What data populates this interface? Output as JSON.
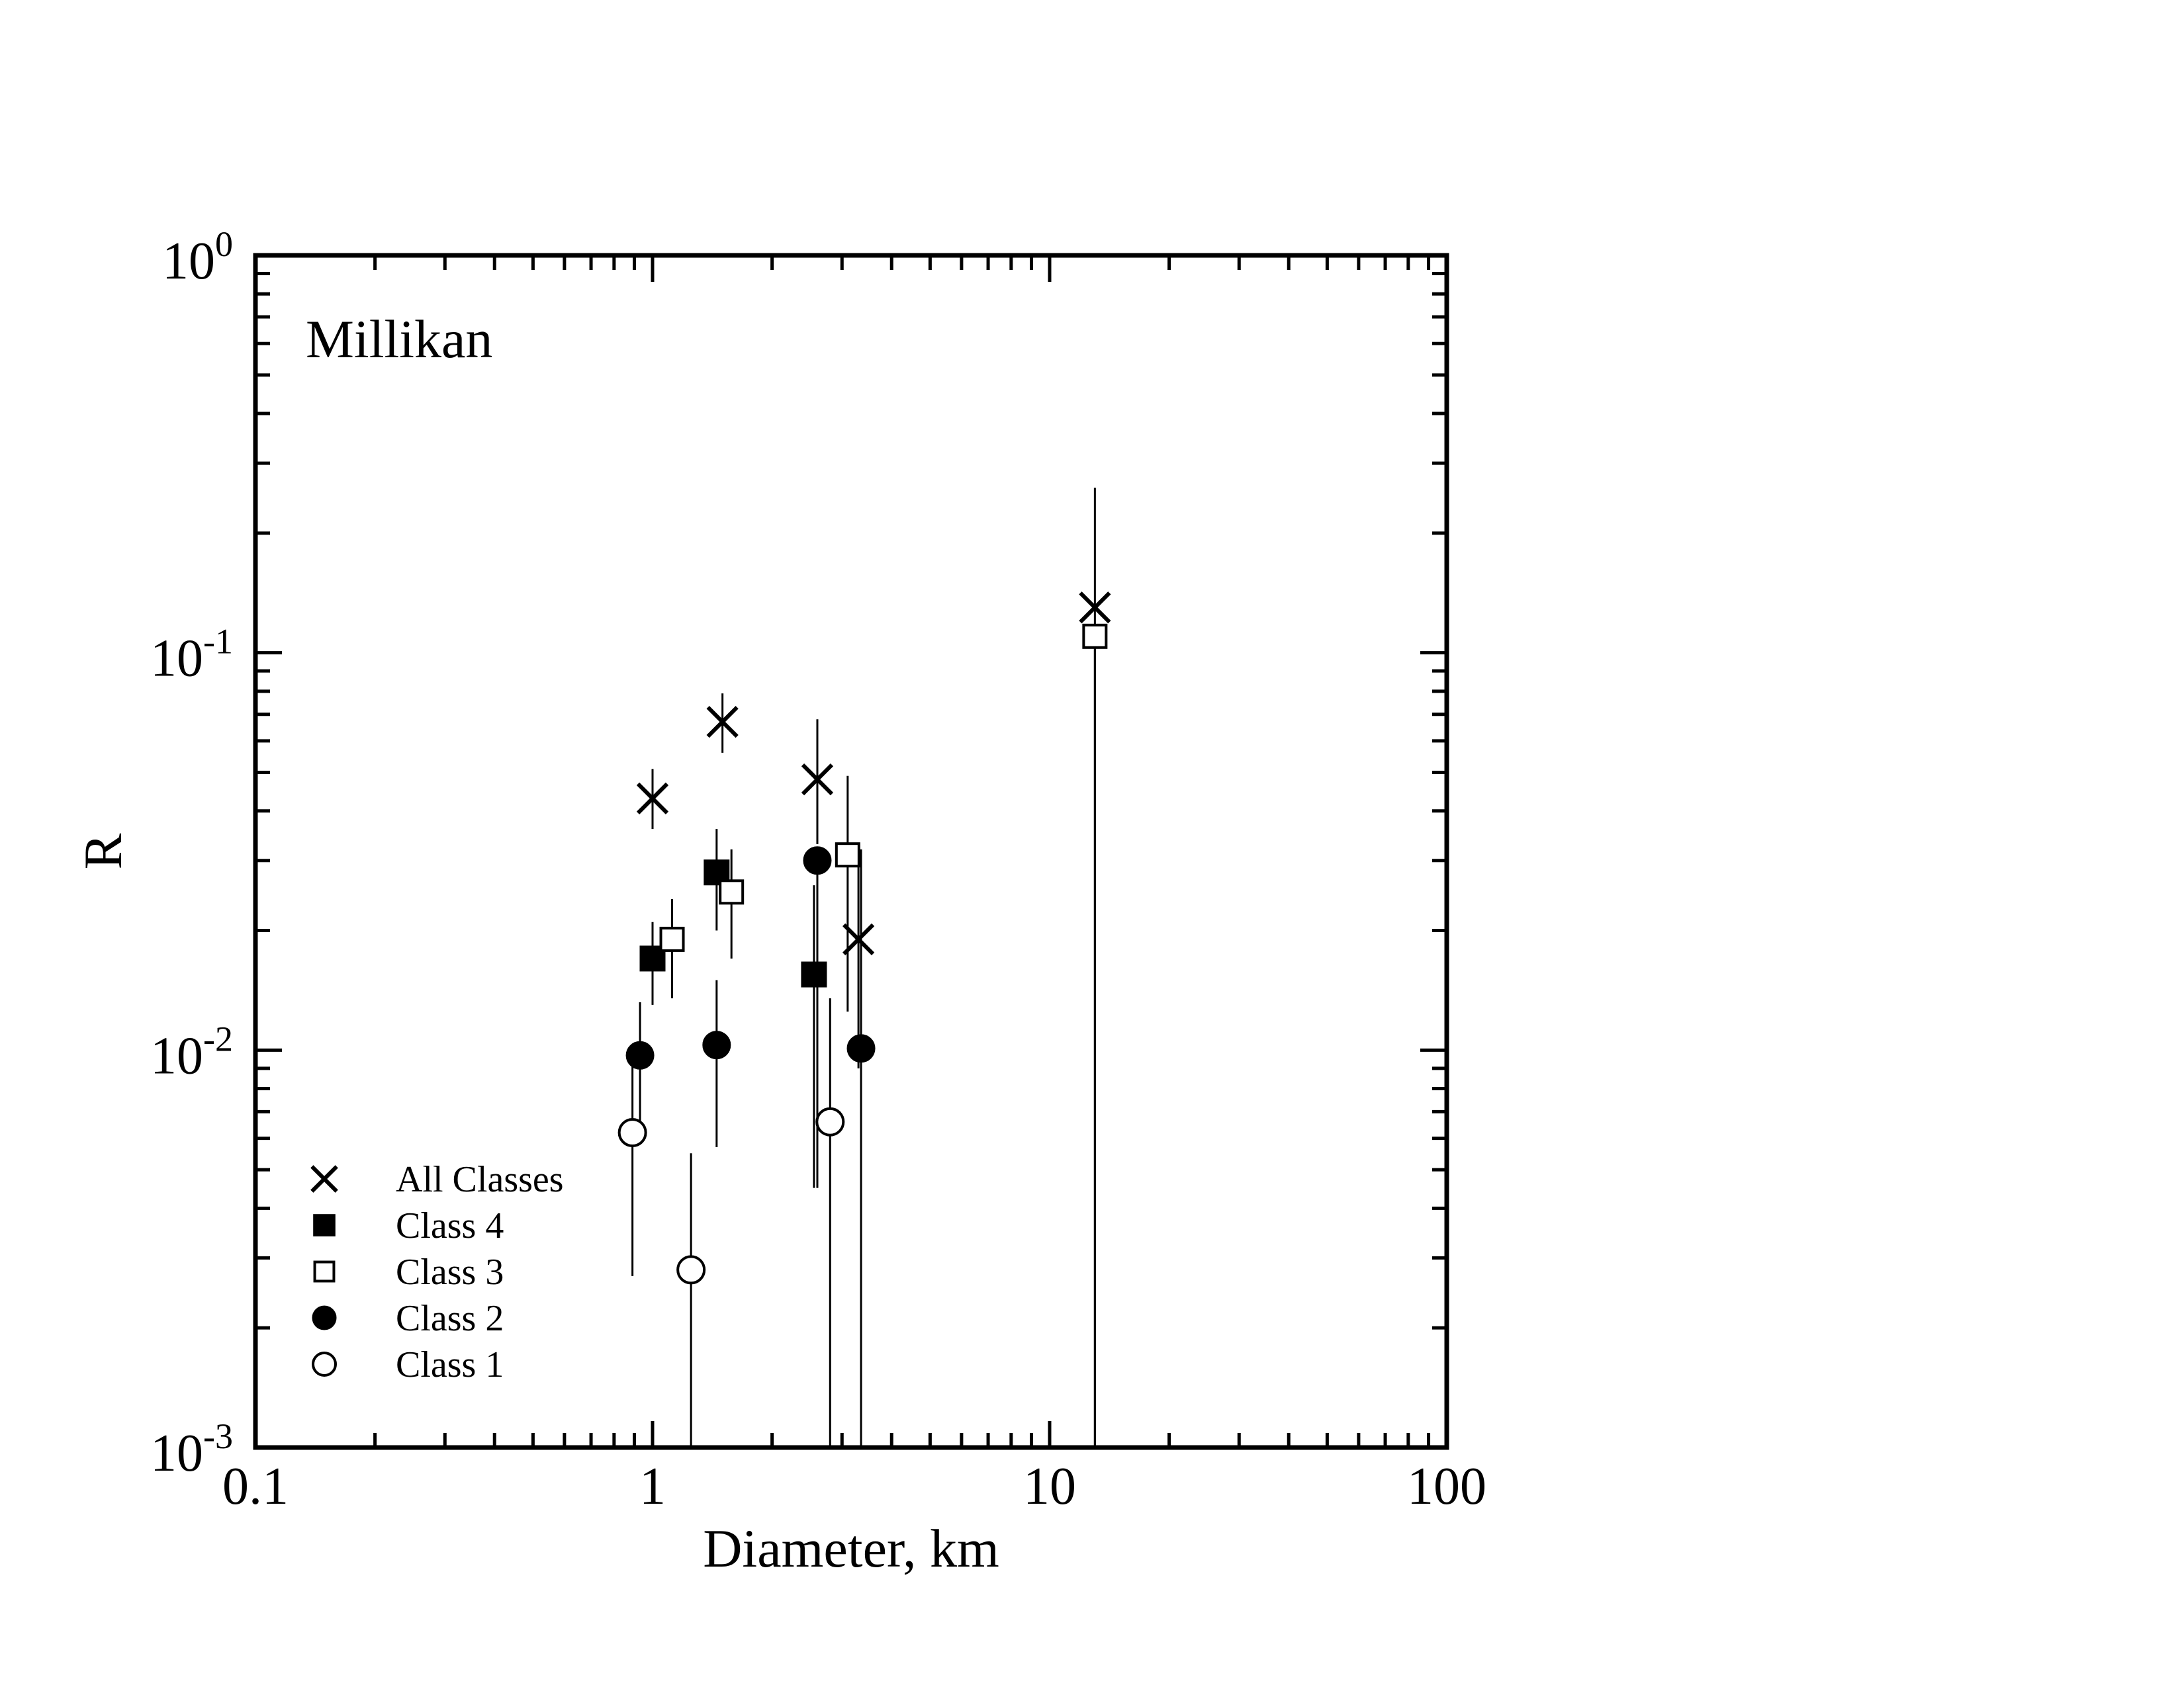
{
  "chart_data": {
    "type": "scatter",
    "title": "Millikan",
    "xlabel": "Diameter, km",
    "ylabel": "R",
    "xscale": "log",
    "yscale": "log",
    "xlim": [
      0.1,
      100
    ],
    "ylim": [
      0.001,
      1
    ],
    "x_ticks": [
      {
        "value": 0.1,
        "label": "0.1"
      },
      {
        "value": 1,
        "label": "1"
      },
      {
        "value": 10,
        "label": "10"
      },
      {
        "value": 100,
        "label": "100"
      }
    ],
    "y_ticks": [
      {
        "value": 0.001,
        "base": "10",
        "exp": "-3"
      },
      {
        "value": 0.01,
        "base": "10",
        "exp": "-2"
      },
      {
        "value": 0.1,
        "base": "10",
        "exp": "-1"
      },
      {
        "value": 1,
        "base": "10",
        "exp": "0"
      }
    ],
    "grid": false,
    "legend_position": "bottom-left",
    "series": [
      {
        "name": "All Classes",
        "marker": "x",
        "points": [
          {
            "x": 1.0,
            "y": 0.043,
            "ylo": 0.036,
            "yhi": 0.051
          },
          {
            "x": 1.5,
            "y": 0.067,
            "ylo": 0.056,
            "yhi": 0.079
          },
          {
            "x": 2.6,
            "y": 0.048,
            "ylo": 0.033,
            "yhi": 0.068
          },
          {
            "x": 3.3,
            "y": 0.019,
            "ylo": 0.009,
            "yhi": 0.032
          },
          {
            "x": 13.0,
            "y": 0.13,
            "ylo": 0.001,
            "yhi": 0.26
          }
        ]
      },
      {
        "name": "Class 4",
        "marker": "filled-square",
        "points": [
          {
            "x": 1.0,
            "y": 0.017,
            "ylo": 0.013,
            "yhi": 0.021
          },
          {
            "x": 1.45,
            "y": 0.028,
            "ylo": 0.02,
            "yhi": 0.036
          },
          {
            "x": 2.55,
            "y": 0.0155,
            "ylo": 0.0045,
            "yhi": 0.026
          }
        ]
      },
      {
        "name": "Class 3",
        "marker": "open-square",
        "points": [
          {
            "x": 1.12,
            "y": 0.019,
            "ylo": 0.0135,
            "yhi": 0.024
          },
          {
            "x": 1.58,
            "y": 0.025,
            "ylo": 0.017,
            "yhi": 0.032
          },
          {
            "x": 3.1,
            "y": 0.031,
            "ylo": 0.0125,
            "yhi": 0.049
          },
          {
            "x": 13.0,
            "y": 0.11,
            "ylo": 0.001,
            "yhi": 0.115
          }
        ]
      },
      {
        "name": "Class 2",
        "marker": "filled-circle",
        "points": [
          {
            "x": 0.93,
            "y": 0.0097,
            "ylo": 0.0065,
            "yhi": 0.0132
          },
          {
            "x": 1.45,
            "y": 0.0103,
            "ylo": 0.0057,
            "yhi": 0.015
          },
          {
            "x": 2.6,
            "y": 0.03,
            "ylo": 0.0045,
            "yhi": 0.031
          },
          {
            "x": 3.35,
            "y": 0.0101,
            "ylo": 0.001,
            "yhi": 0.032
          }
        ]
      },
      {
        "name": "Class 1",
        "marker": "open-circle",
        "points": [
          {
            "x": 0.89,
            "y": 0.0062,
            "ylo": 0.0027,
            "yhi": 0.0098
          },
          {
            "x": 1.25,
            "y": 0.0028,
            "ylo": 0.001,
            "yhi": 0.0055
          },
          {
            "x": 2.8,
            "y": 0.0066,
            "ylo": 0.001,
            "yhi": 0.0135
          }
        ]
      }
    ]
  }
}
